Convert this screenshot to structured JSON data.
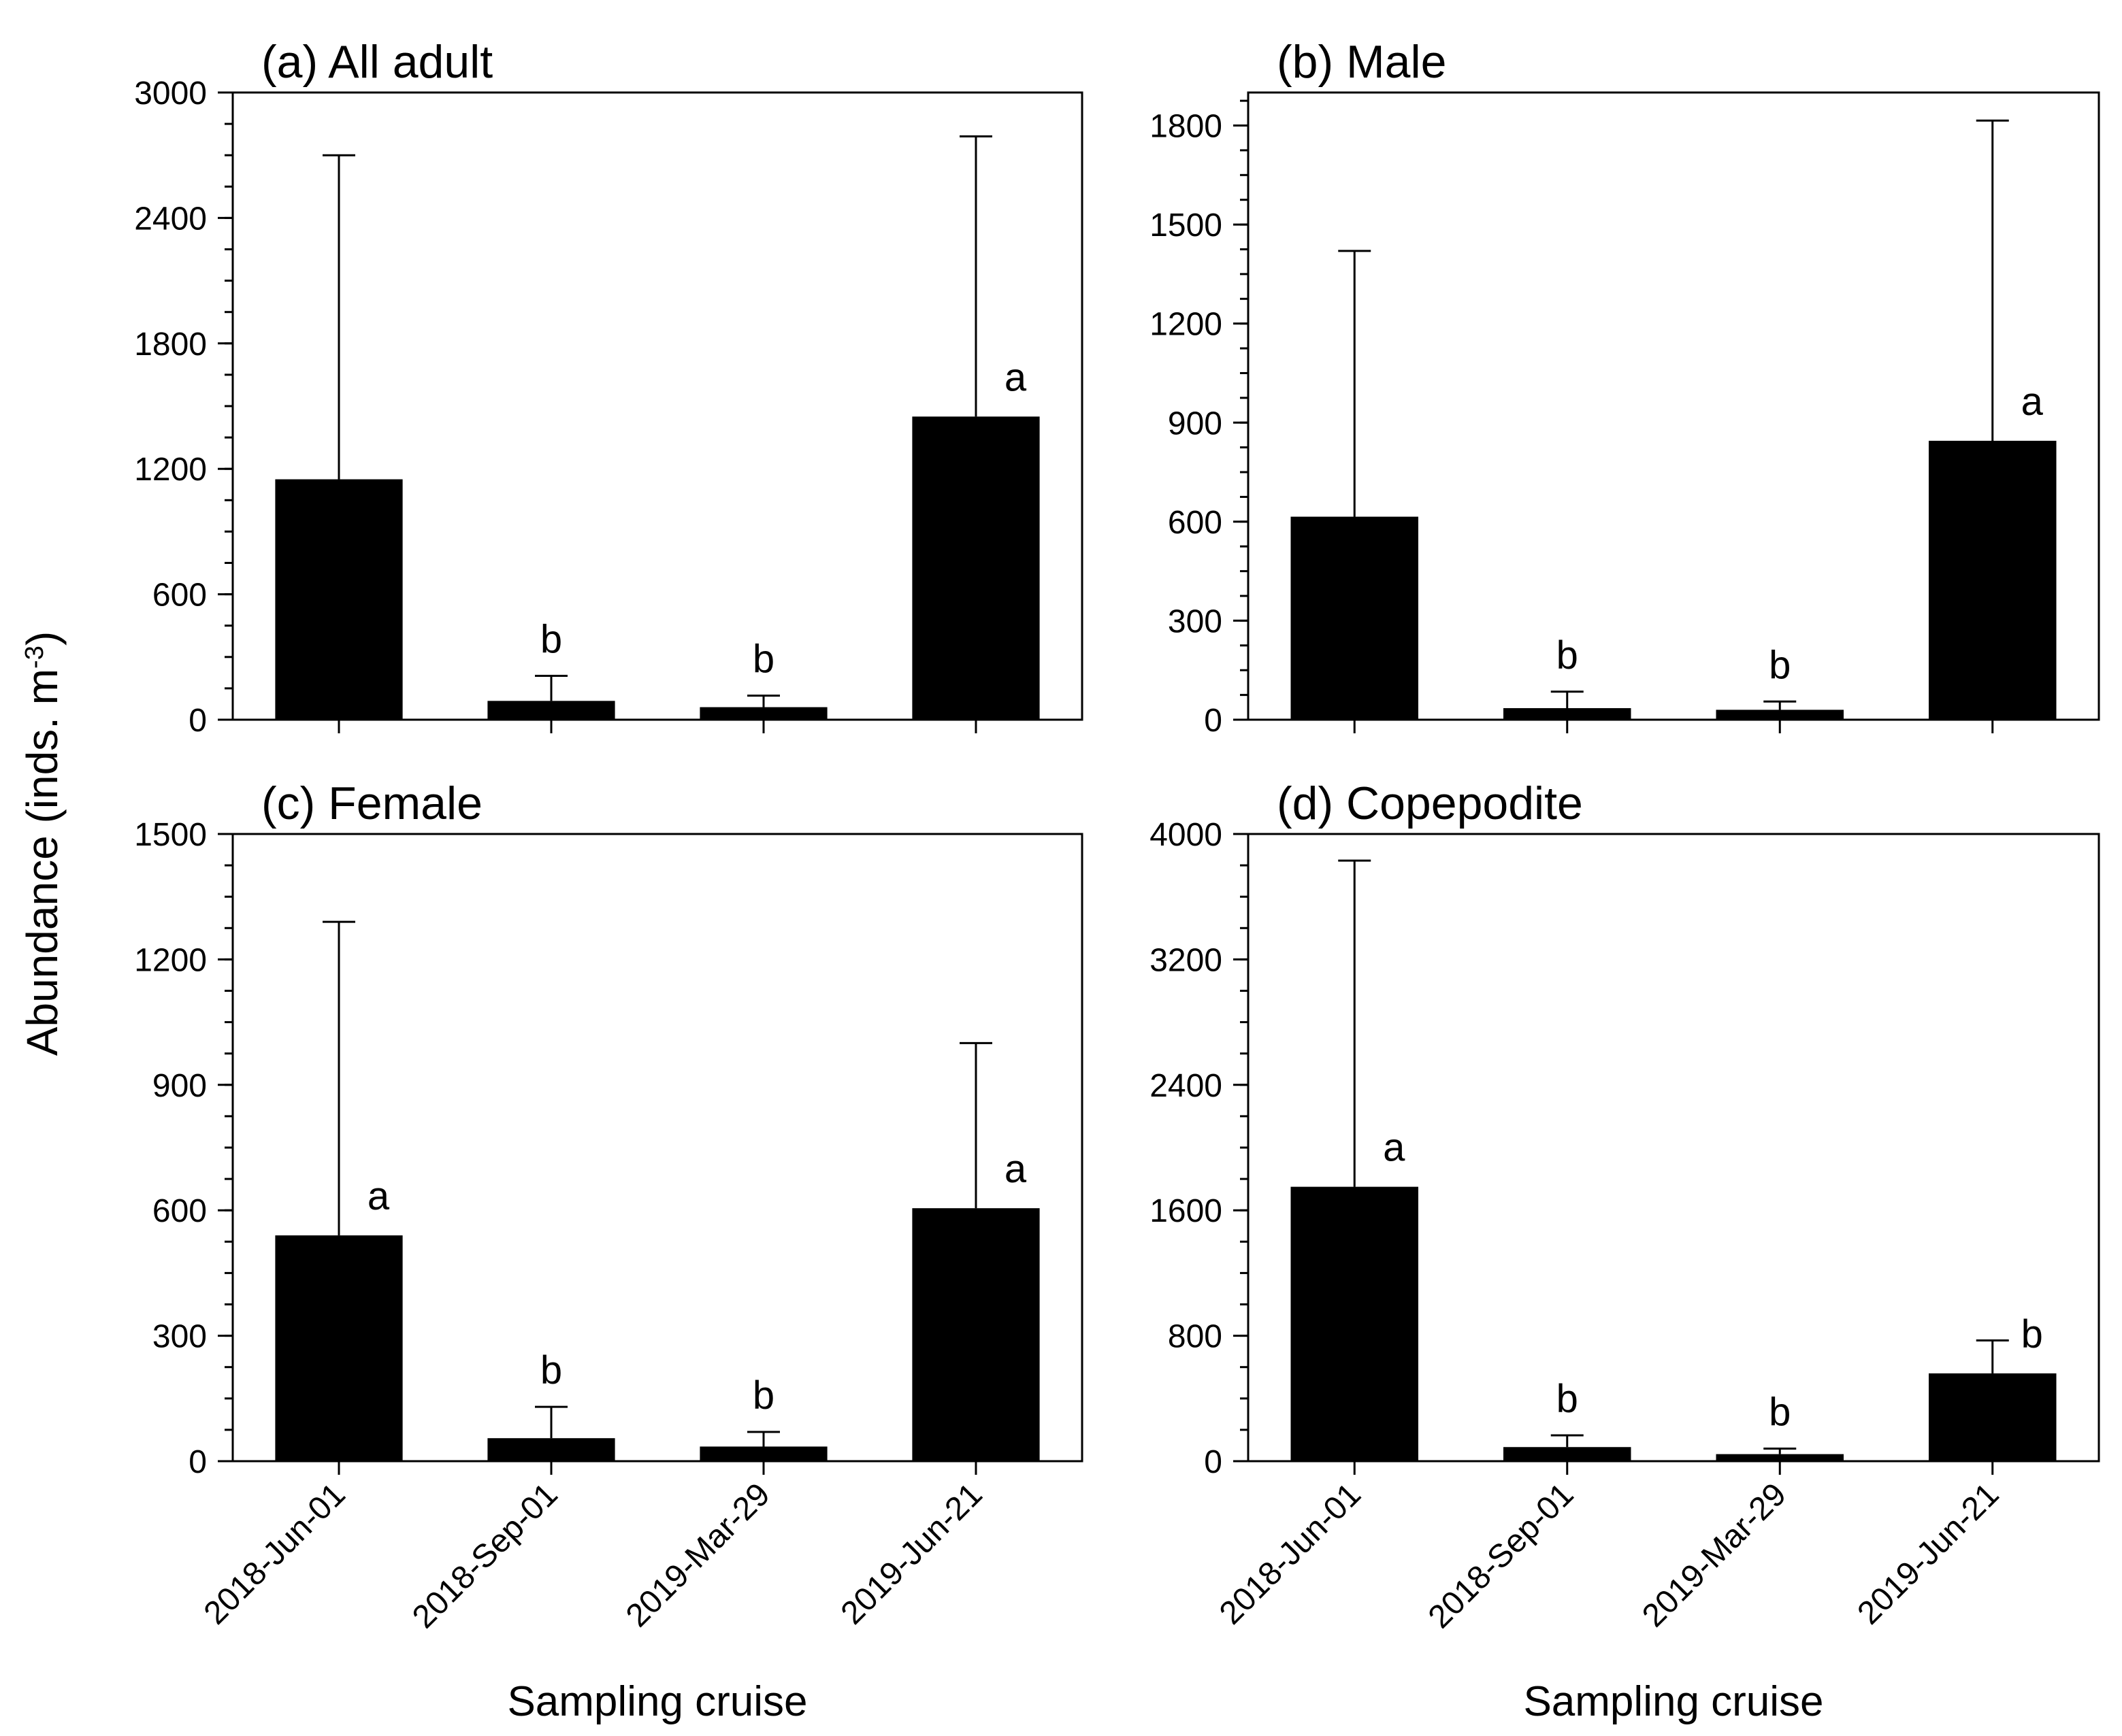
{
  "figure": {
    "ylabel_main": "Abundance (inds. m",
    "ylabel_sup": "-3",
    "ylabel_close": ")",
    "xlabel": "Sampling cruise"
  },
  "colors": {
    "bar": "#000000",
    "axis": "#000000",
    "background": "#ffffff"
  },
  "chart_data": [
    {
      "type": "bar",
      "title": "(a) All adult",
      "categories": [
        "2018-Jun-01",
        "2018-Sep-01",
        "2019-Mar-29",
        "2019-Jun-21"
      ],
      "values": [
        1150,
        90,
        60,
        1450
      ],
      "errors_upper": [
        2700,
        210,
        115,
        2790
      ],
      "letters": [
        "",
        "b",
        "b",
        "a"
      ],
      "ylim": [
        0,
        3000
      ],
      "yticks": [
        0,
        600,
        1200,
        1800,
        2400,
        3000
      ],
      "yticks_label": [
        "0",
        "600",
        "1200",
        "1800",
        "2400",
        "3000"
      ],
      "minor_step": 150,
      "show_xticklabels": false,
      "show_xlabel": false
    },
    {
      "type": "bar",
      "title": "(b) Male",
      "categories": [
        "2018-Jun-01",
        "2018-Sep-01",
        "2019-Mar-29",
        "2019-Jun-21"
      ],
      "values": [
        615,
        35,
        30,
        845
      ],
      "errors_upper": [
        1420,
        85,
        55,
        1815
      ],
      "letters": [
        "",
        "b",
        "b",
        "a"
      ],
      "ylim": [
        0,
        1900
      ],
      "yticks": [
        0,
        300,
        600,
        900,
        1200,
        1500,
        1800
      ],
      "yticks_label": [
        "0",
        "300",
        "600",
        "900",
        "1200",
        "1500",
        "1800"
      ],
      "minor_step": 75,
      "show_xticklabels": false,
      "show_xlabel": false
    },
    {
      "type": "bar",
      "title": "(c) Female",
      "categories": [
        "2018-Jun-01",
        "2018-Sep-01",
        "2019-Mar-29",
        "2019-Jun-21"
      ],
      "values": [
        540,
        55,
        35,
        605
      ],
      "errors_upper": [
        1290,
        130,
        70,
        1000
      ],
      "letters": [
        "a",
        "b",
        "b",
        "a"
      ],
      "ylim": [
        0,
        1500
      ],
      "yticks": [
        0,
        300,
        600,
        900,
        1200,
        1500
      ],
      "yticks_label": [
        "0",
        "300",
        "600",
        "900",
        "1200",
        "1500"
      ],
      "minor_step": 75,
      "show_xticklabels": true,
      "show_xlabel": true
    },
    {
      "type": "bar",
      "title": "(d) Copepodite",
      "categories": [
        "2018-Jun-01",
        "2018-Sep-01",
        "2019-Mar-29",
        "2019-Jun-21"
      ],
      "values": [
        1750,
        90,
        45,
        560
      ],
      "errors_upper": [
        3830,
        165,
        80,
        770
      ],
      "letters": [
        "a",
        "b",
        "b",
        "b"
      ],
      "ylim": [
        0,
        4000
      ],
      "yticks": [
        0,
        800,
        1600,
        2400,
        3200,
        4000
      ],
      "yticks_label": [
        "0",
        "800",
        "1600",
        "2400",
        "3200",
        "4000"
      ],
      "minor_step": 200,
      "show_xticklabels": true,
      "show_xlabel": true
    }
  ]
}
